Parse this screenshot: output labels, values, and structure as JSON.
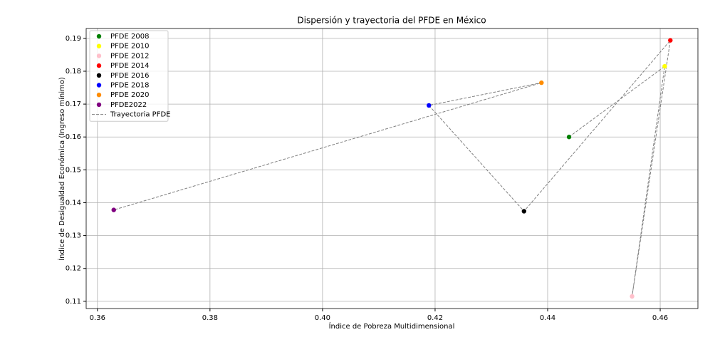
{
  "chart_data": {
    "type": "scatter",
    "title": "Dispersión y trayectoria del PFDE en México",
    "x_label": "Índice de Pobreza Multidimensional",
    "y_label": "Índice de Desigualdad Económica (Ingreso mínimo)",
    "series": [
      {
        "name": "PFDE 2008",
        "color": "green",
        "x": [
          0.4438
        ],
        "values": [
          0.16
        ]
      },
      {
        "name": "PFDE 2010",
        "color": "yellow",
        "x": [
          0.4608
        ],
        "values": [
          0.1815
        ]
      },
      {
        "name": "PFDE 2012",
        "color": "pink",
        "x": [
          0.455
        ],
        "values": [
          0.1115
        ]
      },
      {
        "name": "PFDE 2014",
        "color": "red",
        "x": [
          0.4618
        ],
        "values": [
          0.1894
        ]
      },
      {
        "name": "PFDE 2016",
        "color": "black",
        "x": [
          0.4358
        ],
        "values": [
          0.1374
        ]
      },
      {
        "name": "PFDE 2018",
        "color": "blue",
        "x": [
          0.4189
        ],
        "values": [
          0.1696
        ]
      },
      {
        "name": "PFDE 2020",
        "color": "darkorange",
        "x": [
          0.4389
        ],
        "values": [
          0.1765
        ]
      },
      {
        "name": "PFDE2022",
        "color": "purple",
        "x": [
          0.3629
        ],
        "values": [
          0.1378
        ]
      }
    ],
    "trajectory": {
      "name": "Trayectoria PFDE",
      "color": "gray",
      "dashed": true
    },
    "xlim": [
      0.358,
      0.4667
    ],
    "xticks": [
      {
        "value": 0.36,
        "label": "0.36"
      },
      {
        "value": 0.38,
        "label": "0.38"
      },
      {
        "value": 0.4,
        "label": "0.40"
      },
      {
        "value": 0.42,
        "label": "0.42"
      },
      {
        "value": 0.44,
        "label": "0.44"
      },
      {
        "value": 0.46,
        "label": "0.46"
      }
    ],
    "ylim": [
      0.1078,
      0.193
    ],
    "yticks": [
      0.11,
      0.12,
      0.13,
      0.14,
      0.15,
      0.16,
      0.17,
      0.18,
      0.19
    ],
    "grid": true,
    "legend": "upper left"
  }
}
